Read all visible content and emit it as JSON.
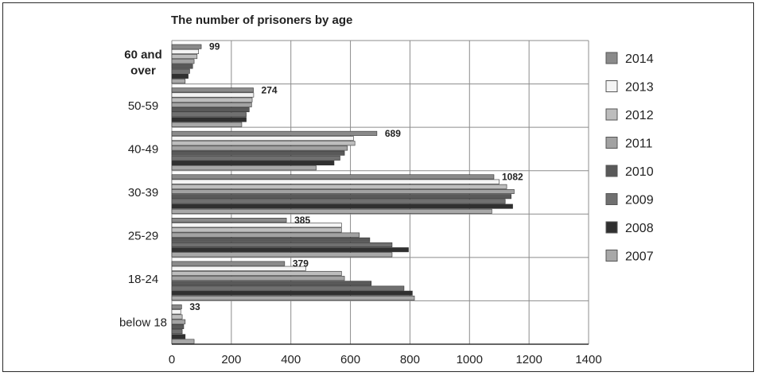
{
  "chart_data": {
    "type": "bar",
    "orientation": "horizontal",
    "title": "The number of prisoners by age",
    "xlabel": "",
    "ylabel": "",
    "xlim": [
      0,
      1400
    ],
    "xticks": [
      0,
      200,
      400,
      600,
      800,
      1000,
      1200,
      1400
    ],
    "grid": true,
    "legend_position": "right",
    "categories": [
      "60 and over",
      "50-59",
      "40-49",
      "30-39",
      "25-29",
      "18-24",
      "below 18"
    ],
    "series": [
      {
        "name": "2014",
        "color": "#8a8a8a",
        "values": [
          99,
          274,
          689,
          1082,
          385,
          379,
          33
        ]
      },
      {
        "name": "2013",
        "color": "#f4f4f4",
        "values": [
          90,
          275,
          610,
          1100,
          570,
          450,
          30
        ]
      },
      {
        "name": "2012",
        "color": "#bdbdbd",
        "values": [
          85,
          270,
          615,
          1125,
          570,
          570,
          35
        ]
      },
      {
        "name": "2011",
        "color": "#a2a2a2",
        "values": [
          75,
          268,
          590,
          1150,
          630,
          580,
          45
        ]
      },
      {
        "name": "2010",
        "color": "#595959",
        "values": [
          70,
          260,
          580,
          1140,
          665,
          670,
          40
        ]
      },
      {
        "name": "2009",
        "color": "#707070",
        "values": [
          60,
          250,
          565,
          1120,
          740,
          780,
          35
        ]
      },
      {
        "name": "2008",
        "color": "#303030",
        "values": [
          55,
          250,
          545,
          1145,
          795,
          808,
          45
        ]
      },
      {
        "name": "2007",
        "color": "#a8a8a8",
        "values": [
          45,
          235,
          485,
          1075,
          740,
          815,
          75
        ]
      }
    ],
    "data_labels": [
      {
        "category": "60 and over",
        "text": "99"
      },
      {
        "category": "50-59",
        "text": "274"
      },
      {
        "category": "40-49",
        "text": "689"
      },
      {
        "category": "30-39",
        "text": "1082"
      },
      {
        "category": "25-29",
        "text": "385"
      },
      {
        "category": "18-24",
        "text": "379"
      },
      {
        "category": "below 18",
        "text": "33"
      }
    ]
  }
}
